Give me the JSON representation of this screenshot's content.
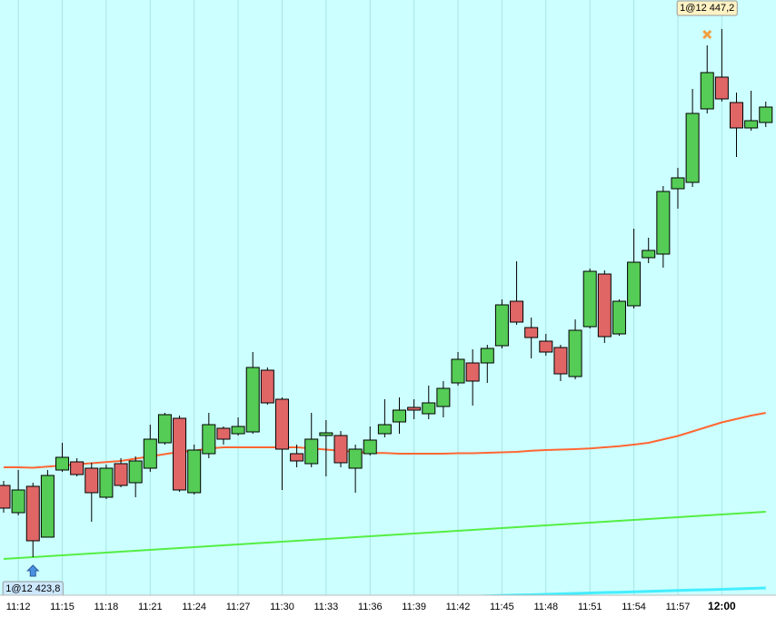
{
  "chart_data": {
    "type": "candlestick",
    "categories": [
      null,
      "11:12",
      null,
      null,
      "11:15",
      null,
      null,
      "11:18",
      null,
      null,
      "11:21",
      null,
      null,
      "11:24",
      null,
      null,
      "11:27",
      null,
      null,
      "11:30",
      null,
      null,
      "11:33",
      null,
      null,
      "11:36",
      null,
      null,
      "11:39",
      null,
      null,
      "11:42",
      null,
      null,
      "11:45",
      null,
      null,
      "11:48",
      null,
      null,
      "11:51",
      null,
      null,
      "11:54",
      null,
      null,
      "11:57",
      null,
      null,
      "12:00",
      null,
      null,
      null
    ],
    "open": [
      427.32,
      426.12,
      427.28,
      425.04,
      428.0,
      428.36,
      428.08,
      426.8,
      428.28,
      427.44,
      428.08,
      429.2,
      430.28,
      427.0,
      428.72,
      429.84,
      429.6,
      429.68,
      432.4,
      431.12,
      428.72,
      428.28,
      429.52,
      429.52,
      428.08,
      428.72,
      429.6,
      430.12,
      430.76,
      430.48,
      430.8,
      431.84,
      432.72,
      432.72,
      433.48,
      435.44,
      434.28,
      433.68,
      433.4,
      432.12,
      434.32,
      436.64,
      434.0,
      435.24,
      437.36,
      437.52,
      440.4,
      440.68,
      443.92,
      445.32,
      444.2,
      443.08,
      443.32
    ],
    "high": [
      427.52,
      428.0,
      427.44,
      428.0,
      429.2,
      428.52,
      428.32,
      428.24,
      428.52,
      428.6,
      430.0,
      430.52,
      430.4,
      429.12,
      430.52,
      429.92,
      430.32,
      433.2,
      432.52,
      431.2,
      429.12,
      430.52,
      430.2,
      429.72,
      429.12,
      429.92,
      431.12,
      431.2,
      431.12,
      431.72,
      431.92,
      433.2,
      433.32,
      433.52,
      435.52,
      437.2,
      434.72,
      434.0,
      433.52,
      434.64,
      436.88,
      436.8,
      435.52,
      438.64,
      438.24,
      440.52,
      441.32,
      444.8,
      446.72,
      447.44,
      444.64,
      444.72,
      444.24
    ],
    "low": [
      426.12,
      426.0,
      424.16,
      425.04,
      427.92,
      427.72,
      425.72,
      426.72,
      427.24,
      426.8,
      427.92,
      429.12,
      427.04,
      426.92,
      428.52,
      429.12,
      429.52,
      429.6,
      430.88,
      427.12,
      428.12,
      428.12,
      427.72,
      428.12,
      427.0,
      428.64,
      429.44,
      429.6,
      430.24,
      430.24,
      430.32,
      431.72,
      430.84,
      431.84,
      433.36,
      434.4,
      432.92,
      433.04,
      431.92,
      432.0,
      434.24,
      433.6,
      433.92,
      435.12,
      437.12,
      436.92,
      439.52,
      440.48,
      443.72,
      444.24,
      441.8,
      442.96,
      443.12
    ],
    "close": [
      426.32,
      427.12,
      424.88,
      427.76,
      428.56,
      427.8,
      427.0,
      428.08,
      427.32,
      428.4,
      429.36,
      430.44,
      427.12,
      428.88,
      430.0,
      429.36,
      429.92,
      432.52,
      430.96,
      428.92,
      428.4,
      429.36,
      429.64,
      428.32,
      428.92,
      429.32,
      430.0,
      430.64,
      430.64,
      430.96,
      431.6,
      432.88,
      431.92,
      433.36,
      435.28,
      434.52,
      433.84,
      433.2,
      432.24,
      434.16,
      436.76,
      433.88,
      435.44,
      437.16,
      437.68,
      440.28,
      440.88,
      443.72,
      445.52,
      444.36,
      443.08,
      443.4,
      444.0
    ],
    "up_color": "#55cc55",
    "down_color": "#e06666",
    "lines": [
      {
        "color": "#ff6633",
        "values": [
          428.12,
          428.12,
          428.1,
          428.15,
          428.2,
          428.25,
          428.3,
          428.35,
          428.4,
          428.5,
          428.6,
          428.7,
          428.8,
          428.85,
          428.95,
          429.0,
          429.0,
          429.0,
          429.0,
          429.0,
          429.0,
          428.95,
          428.9,
          428.85,
          428.8,
          428.75,
          428.75,
          428.72,
          428.72,
          428.72,
          428.72,
          428.74,
          428.74,
          428.76,
          428.78,
          428.8,
          428.85,
          428.88,
          428.9,
          428.92,
          428.95,
          429.0,
          429.05,
          429.12,
          429.2,
          429.35,
          429.5,
          429.7,
          429.9,
          430.1,
          430.25,
          430.4,
          430.52
        ]
      },
      {
        "color": "#55ee44",
        "values": [
          424.08,
          424.12,
          424.16,
          424.2,
          424.24,
          424.28,
          424.32,
          424.36,
          424.4,
          424.44,
          424.48,
          424.52,
          424.56,
          424.6,
          424.64,
          424.68,
          424.72,
          424.76,
          424.8,
          424.84,
          424.88,
          424.92,
          424.96,
          425.0,
          425.04,
          425.08,
          425.12,
          425.16,
          425.2,
          425.24,
          425.28,
          425.32,
          425.36,
          425.4,
          425.44,
          425.48,
          425.52,
          425.56,
          425.6,
          425.64,
          425.68,
          425.72,
          425.76,
          425.8,
          425.84,
          425.88,
          425.92,
          425.96,
          426.0,
          426.04,
          426.08,
          426.12,
          426.16
        ]
      },
      {
        "color": "#44eeff",
        "values": [
          null,
          null,
          null,
          null,
          null,
          null,
          null,
          null,
          null,
          null,
          null,
          null,
          null,
          null,
          null,
          null,
          null,
          null,
          null,
          null,
          null,
          null,
          null,
          null,
          null,
          null,
          null,
          422.34,
          422.36,
          422.38,
          422.39,
          422.41,
          422.43,
          422.45,
          422.47,
          422.49,
          422.5,
          422.52,
          422.54,
          422.56,
          422.58,
          422.6,
          422.61,
          422.63,
          422.65,
          422.67,
          422.69,
          422.71,
          422.72,
          422.74,
          422.76,
          422.78,
          422.8
        ]
      }
    ],
    "trades": [
      {
        "label": "1@12 423,8",
        "price": 423.8,
        "index": 2,
        "side": "buy",
        "color": "#4a90e2"
      },
      {
        "label": "1@12 447,2",
        "price": 447.2,
        "index": 48,
        "side": "sell",
        "color": "#f0a040"
      }
    ],
    "ylim": [
      422.32,
      448.72
    ],
    "background": "#ccffff",
    "grid": true
  }
}
